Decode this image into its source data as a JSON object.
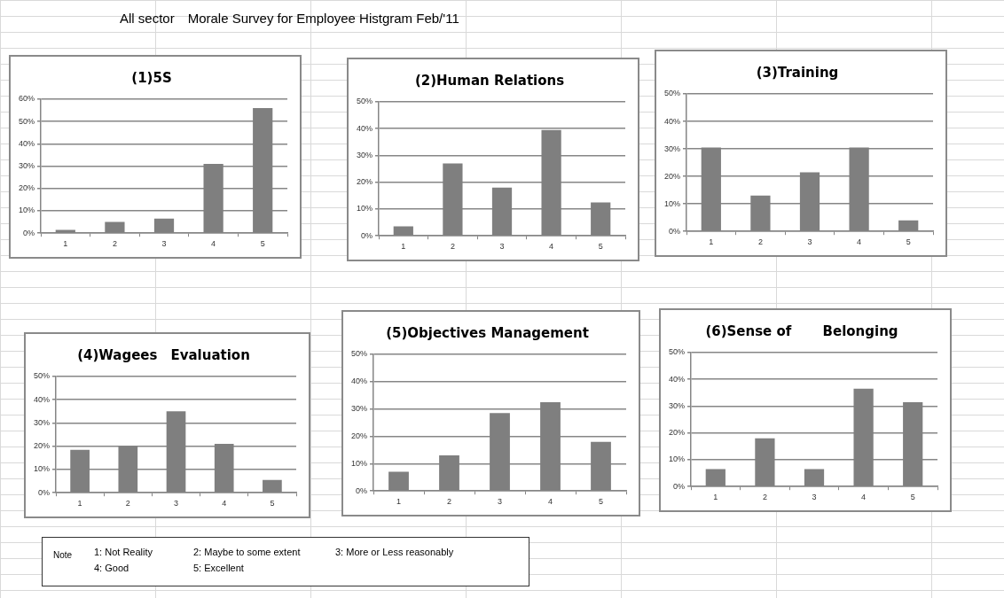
{
  "chart_data": [
    {
      "type": "other",
      "title": "All sector　Morale Survey for Employee Histgram Feb/'11"
    },
    {
      "type": "bar",
      "title": "(1)5S",
      "categories": [
        "1",
        "2",
        "3",
        "4",
        "5"
      ],
      "values": [
        1.5,
        5,
        6.5,
        31,
        56
      ],
      "color": "#7f7f7f",
      "ylim": [
        0,
        60
      ],
      "yticks": [
        {
          "value": 0,
          "label": "0%"
        },
        {
          "value": 10,
          "label": "10%"
        },
        {
          "value": 20,
          "label": "20%"
        },
        {
          "value": 30,
          "label": "30%"
        },
        {
          "value": 40,
          "label": "40%"
        },
        {
          "value": 50,
          "label": "50%"
        },
        {
          "value": 60,
          "label": "60%"
        }
      ],
      "grid": "y",
      "legend": false
    },
    {
      "type": "bar",
      "title": "(2)Human Relations",
      "categories": [
        "1",
        "2",
        "3",
        "4",
        "5"
      ],
      "values": [
        3.5,
        27,
        18,
        39.5,
        12.5
      ],
      "color": "#7f7f7f",
      "ylim": [
        0,
        50
      ],
      "yticks": [
        {
          "value": 0,
          "label": "0%"
        },
        {
          "value": 10,
          "label": "10%"
        },
        {
          "value": 20,
          "label": "20%"
        },
        {
          "value": 30,
          "label": "30%"
        },
        {
          "value": 40,
          "label": "40%"
        },
        {
          "value": 50,
          "label": "50%"
        }
      ],
      "grid": "y",
      "legend": false
    },
    {
      "type": "bar",
      "title": "(3)Training",
      "categories": [
        "1",
        "2",
        "3",
        "4",
        "5"
      ],
      "values": [
        30.5,
        13,
        21.5,
        30.5,
        4
      ],
      "color": "#7f7f7f",
      "ylim": [
        0,
        50
      ],
      "yticks": [
        {
          "value": 0,
          "label": "0%"
        },
        {
          "value": 10,
          "label": "10%"
        },
        {
          "value": 20,
          "label": "20%"
        },
        {
          "value": 30,
          "label": "30%"
        },
        {
          "value": 40,
          "label": "40%"
        },
        {
          "value": 50,
          "label": "50%"
        }
      ],
      "grid": "y",
      "legend": false
    },
    {
      "type": "bar",
      "title": "(4)Wagees　Evaluation",
      "categories": [
        "1",
        "2",
        "3",
        "4",
        "5"
      ],
      "values": [
        18.5,
        20,
        35,
        21,
        5.5
      ],
      "color": "#7f7f7f",
      "ylim": [
        0,
        50
      ],
      "yticks": [
        {
          "value": 0,
          "label": "0%"
        },
        {
          "value": 10,
          "label": "10%"
        },
        {
          "value": 20,
          "label": "20%"
        },
        {
          "value": 30,
          "label": "30%"
        },
        {
          "value": 40,
          "label": "40%"
        },
        {
          "value": 50,
          "label": "50%"
        }
      ],
      "grid": "y",
      "legend": false
    },
    {
      "type": "bar",
      "title": "(5)Objectives Management",
      "categories": [
        "1",
        "2",
        "3",
        "4",
        "5"
      ],
      "values": [
        7,
        13,
        28.5,
        32.5,
        18
      ],
      "color": "#7f7f7f",
      "ylim": [
        0,
        50
      ],
      "yticks": [
        {
          "value": 0,
          "label": "0%"
        },
        {
          "value": 10,
          "label": "10%"
        },
        {
          "value": 20,
          "label": "20%"
        },
        {
          "value": 30,
          "label": "30%"
        },
        {
          "value": 40,
          "label": "40%"
        },
        {
          "value": 50,
          "label": "50%"
        }
      ],
      "grid": "y",
      "legend": false
    },
    {
      "type": "bar",
      "title": "(6)Sense of　　 Belonging",
      "categories": [
        "1",
        "2",
        "3",
        "4",
        "5"
      ],
      "values": [
        6.5,
        18,
        6.5,
        36.5,
        31.5
      ],
      "color": "#7f7f7f",
      "ylim": [
        0,
        50
      ],
      "yticks": [
        {
          "value": 0,
          "label": "0%"
        },
        {
          "value": 10,
          "label": "10%"
        },
        {
          "value": 20,
          "label": "20%"
        },
        {
          "value": 30,
          "label": "30%"
        },
        {
          "value": 40,
          "label": "40%"
        },
        {
          "value": 50,
          "label": "50%"
        }
      ],
      "grid": "y",
      "legend": false
    },
    {
      "type": "other",
      "annotations": [
        "Note",
        "1: Not Reality",
        "2: Maybe to some extent",
        "3: More or Less reasonably",
        "4: Good",
        "5: Excellent"
      ]
    }
  ]
}
